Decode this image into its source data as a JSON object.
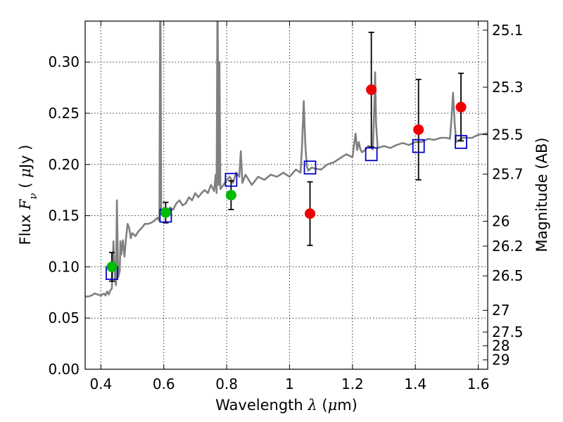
{
  "chart_data": {
    "type": "scatter",
    "xlabel": "Wavelength  λ (μm)",
    "ylabel": "Flux  Fν  ( μJy )",
    "ylabel_right": "Magnitude (AB)",
    "xlim": [
      0.35,
      1.63
    ],
    "ylim": [
      0.0,
      0.34
    ],
    "xticks": [
      0.4,
      0.6,
      0.8,
      1.0,
      1.2,
      1.4,
      1.6
    ],
    "xtick_labels": [
      "0.4",
      "0.6",
      "0.8",
      "1",
      "1.2",
      "1.4",
      "1.6"
    ],
    "yticks": [
      0.0,
      0.05,
      0.1,
      0.15,
      0.2,
      0.25,
      0.3
    ],
    "ytick_labels": [
      "0.00",
      "0.05",
      "0.10",
      "0.15",
      "0.20",
      "0.25",
      "0.30"
    ],
    "right_ticks": [
      "25.1",
      "25.3",
      "25.5",
      "25.7",
      "26",
      "26.2",
      "26.5",
      "27",
      "27.5",
      "28",
      "29"
    ],
    "grid": true,
    "colors": {
      "model": "#808080",
      "model_photometry": "#0000cc",
      "green": "#00bb00",
      "red": "#ee0000",
      "errorbar": "#000000"
    },
    "observed": [
      {
        "x": 0.435,
        "y": 0.1,
        "err": 0.014,
        "color": "green"
      },
      {
        "x": 0.606,
        "y": 0.153,
        "err": 0.01,
        "color": "green"
      },
      {
        "x": 0.814,
        "y": 0.17,
        "err": 0.014,
        "color": "green"
      },
      {
        "x": 1.065,
        "y": 0.152,
        "err": 0.031,
        "color": "red"
      },
      {
        "x": 1.26,
        "y": 0.273,
        "err": 0.056,
        "color": "red"
      },
      {
        "x": 1.41,
        "y": 0.234,
        "err": 0.049,
        "color": "red"
      },
      {
        "x": 1.545,
        "y": 0.256,
        "err": 0.033,
        "color": "red"
      }
    ],
    "model_photometry": [
      {
        "x": 0.435,
        "y": 0.094
      },
      {
        "x": 0.606,
        "y": 0.15
      },
      {
        "x": 0.814,
        "y": 0.185
      },
      {
        "x": 1.065,
        "y": 0.197
      },
      {
        "x": 1.26,
        "y": 0.21
      },
      {
        "x": 1.41,
        "y": 0.218
      },
      {
        "x": 1.545,
        "y": 0.222
      }
    ],
    "model_spectrum": {
      "x": [
        0.35,
        0.36,
        0.37,
        0.38,
        0.39,
        0.4,
        0.41,
        0.415,
        0.42,
        0.425,
        0.43,
        0.435,
        0.44,
        0.445,
        0.448,
        0.451,
        0.455,
        0.46,
        0.462,
        0.465,
        0.47,
        0.475,
        0.48,
        0.485,
        0.49,
        0.495,
        0.5,
        0.51,
        0.52,
        0.53,
        0.54,
        0.55,
        0.56,
        0.57,
        0.58,
        0.586,
        0.589,
        0.592,
        0.595,
        0.6,
        0.61,
        0.62,
        0.63,
        0.64,
        0.65,
        0.66,
        0.67,
        0.68,
        0.69,
        0.7,
        0.71,
        0.72,
        0.73,
        0.74,
        0.75,
        0.76,
        0.765,
        0.768,
        0.771,
        0.774,
        0.777,
        0.78,
        0.79,
        0.8,
        0.81,
        0.82,
        0.83,
        0.84,
        0.845,
        0.85,
        0.86,
        0.88,
        0.9,
        0.92,
        0.94,
        0.96,
        0.98,
        1.0,
        1.02,
        1.035,
        1.04,
        1.045,
        1.05,
        1.055,
        1.06,
        1.07,
        1.08,
        1.1,
        1.12,
        1.14,
        1.16,
        1.18,
        1.2,
        1.21,
        1.215,
        1.22,
        1.225,
        1.23,
        1.24,
        1.25,
        1.26,
        1.265,
        1.27,
        1.272,
        1.275,
        1.28,
        1.3,
        1.32,
        1.34,
        1.36,
        1.38,
        1.4,
        1.42,
        1.44,
        1.46,
        1.48,
        1.5,
        1.51,
        1.515,
        1.52,
        1.525,
        1.53,
        1.55,
        1.58,
        1.6,
        1.62,
        1.63
      ],
      "y": [
        0.071,
        0.071,
        0.072,
        0.074,
        0.073,
        0.072,
        0.074,
        0.072,
        0.076,
        0.073,
        0.077,
        0.079,
        0.125,
        0.088,
        0.082,
        0.165,
        0.09,
        0.096,
        0.125,
        0.112,
        0.126,
        0.11,
        0.128,
        0.142,
        0.138,
        0.128,
        0.133,
        0.13,
        0.135,
        0.138,
        0.142,
        0.142,
        0.143,
        0.145,
        0.148,
        0.145,
        0.4,
        0.152,
        0.152,
        0.15,
        0.154,
        0.158,
        0.156,
        0.162,
        0.165,
        0.16,
        0.162,
        0.168,
        0.165,
        0.172,
        0.168,
        0.172,
        0.175,
        0.172,
        0.18,
        0.174,
        0.19,
        0.172,
        0.38,
        0.18,
        0.3,
        0.176,
        0.18,
        0.185,
        0.188,
        0.182,
        0.192,
        0.188,
        0.213,
        0.182,
        0.19,
        0.18,
        0.188,
        0.185,
        0.19,
        0.188,
        0.192,
        0.188,
        0.195,
        0.192,
        0.22,
        0.262,
        0.22,
        0.198,
        0.194,
        0.197,
        0.196,
        0.195,
        0.2,
        0.202,
        0.206,
        0.21,
        0.207,
        0.23,
        0.214,
        0.222,
        0.215,
        0.212,
        0.214,
        0.218,
        0.216,
        0.215,
        0.262,
        0.29,
        0.24,
        0.216,
        0.218,
        0.216,
        0.219,
        0.221,
        0.219,
        0.222,
        0.222,
        0.225,
        0.224,
        0.226,
        0.226,
        0.225,
        0.245,
        0.27,
        0.24,
        0.222,
        0.226,
        0.226,
        0.229,
        0.23,
        0.23
      ]
    }
  }
}
